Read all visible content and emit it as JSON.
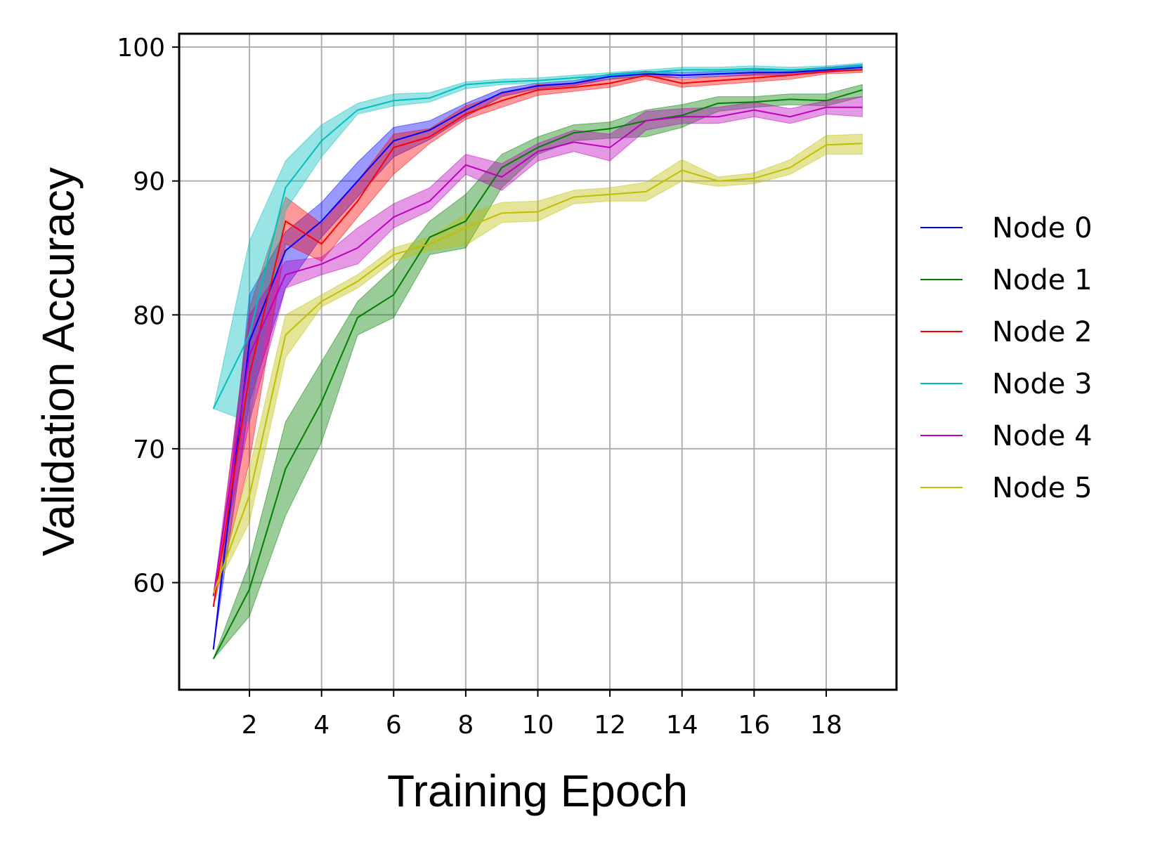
{
  "chart_data": {
    "type": "line",
    "title": "",
    "xlabel": "Training Epoch",
    "ylabel": "Validation Accuracy",
    "xlim": [
      0.05,
      19.95
    ],
    "ylim": [
      52,
      101
    ],
    "xticks": [
      2,
      4,
      6,
      8,
      10,
      12,
      14,
      16,
      18
    ],
    "yticks": [
      60,
      70,
      80,
      90,
      100
    ],
    "grid": true,
    "legend_position": "right",
    "x": [
      1,
      2,
      3,
      4,
      5,
      6,
      7,
      8,
      9,
      10,
      11,
      12,
      13,
      14,
      15,
      16,
      17,
      18,
      19
    ],
    "series": [
      {
        "name": "Node 0",
        "color": "#0000ff",
        "values": [
          55.0,
          78.0,
          84.8,
          87.0,
          90.0,
          93.0,
          93.8,
          95.3,
          96.6,
          97.1,
          97.3,
          97.8,
          98.0,
          97.9,
          98.0,
          98.1,
          98.1,
          98.3,
          98.5
        ],
        "lower": [
          55.0,
          73.5,
          82.0,
          85.8,
          88.8,
          91.8,
          93.1,
          94.8,
          96.3,
          96.9,
          97.1,
          97.6,
          97.8,
          97.7,
          97.8,
          97.9,
          97.9,
          98.1,
          98.3
        ],
        "upper": [
          55.0,
          81.5,
          86.2,
          88.4,
          91.4,
          94.0,
          94.5,
          95.8,
          96.9,
          97.3,
          97.5,
          98.0,
          98.2,
          98.1,
          98.2,
          98.3,
          98.3,
          98.5,
          98.7
        ]
      },
      {
        "name": "Node 1",
        "color": "#008000",
        "values": [
          54.3,
          59.5,
          68.5,
          73.5,
          79.8,
          81.5,
          85.8,
          87.0,
          91.0,
          92.5,
          93.6,
          93.9,
          94.5,
          94.9,
          95.8,
          95.9,
          96.1,
          96.0,
          96.8
        ],
        "lower": [
          54.3,
          57.5,
          65.0,
          70.5,
          78.5,
          79.8,
          84.5,
          85.0,
          89.5,
          92.0,
          93.0,
          93.2,
          93.3,
          94.0,
          95.2,
          95.5,
          95.7,
          95.6,
          96.3
        ],
        "upper": [
          54.3,
          61.5,
          72.0,
          76.5,
          81.0,
          83.5,
          87.0,
          89.0,
          92.0,
          93.3,
          94.2,
          94.4,
          95.3,
          95.7,
          96.3,
          96.3,
          96.5,
          96.5,
          97.2
        ]
      },
      {
        "name": "Node 2",
        "color": "#ff0000",
        "values": [
          58.2,
          75.5,
          87.0,
          85.3,
          88.5,
          92.5,
          93.3,
          95.0,
          96.0,
          96.8,
          97.0,
          97.3,
          97.9,
          97.3,
          97.5,
          97.7,
          97.9,
          98.2,
          98.3
        ],
        "lower": [
          58.2,
          69.0,
          85.3,
          84.0,
          87.3,
          90.5,
          92.8,
          94.6,
          95.5,
          96.4,
          96.7,
          97.0,
          97.6,
          97.0,
          97.2,
          97.4,
          97.6,
          98.0,
          98.1
        ],
        "upper": [
          58.2,
          80.5,
          88.8,
          86.8,
          90.0,
          93.5,
          93.9,
          95.6,
          96.5,
          97.2,
          97.3,
          97.6,
          98.2,
          97.6,
          97.8,
          98.0,
          98.2,
          98.4,
          98.5
        ]
      },
      {
        "name": "Node 3",
        "color": "#00bfbf",
        "values": [
          73.0,
          78.5,
          89.5,
          93.0,
          95.3,
          96.0,
          96.2,
          97.2,
          97.4,
          97.5,
          97.7,
          97.9,
          98.1,
          98.3,
          98.3,
          98.4,
          98.3,
          98.4,
          98.6
        ],
        "lower": [
          73.0,
          72.0,
          87.8,
          91.8,
          95.0,
          95.6,
          95.9,
          96.9,
          97.2,
          97.3,
          97.5,
          97.7,
          97.9,
          98.1,
          98.1,
          98.2,
          98.1,
          98.2,
          98.4
        ],
        "upper": [
          73.0,
          85.5,
          91.5,
          94.2,
          95.8,
          96.5,
          96.6,
          97.4,
          97.6,
          97.7,
          97.9,
          98.1,
          98.3,
          98.5,
          98.5,
          98.6,
          98.5,
          98.6,
          98.8
        ]
      },
      {
        "name": "Node 4",
        "color": "#bf00bf",
        "values": [
          59.0,
          77.0,
          83.0,
          83.8,
          85.0,
          87.3,
          88.5,
          91.2,
          90.3,
          92.2,
          92.9,
          92.5,
          94.5,
          94.8,
          94.8,
          95.3,
          94.8,
          95.5,
          95.5
        ],
        "lower": [
          59.0,
          72.0,
          82.0,
          83.0,
          83.8,
          86.5,
          87.8,
          90.5,
          89.3,
          91.5,
          92.2,
          91.5,
          93.8,
          94.3,
          94.3,
          94.8,
          94.3,
          95.0,
          94.8
        ],
        "upper": [
          59.0,
          80.0,
          84.0,
          84.3,
          86.5,
          88.3,
          89.5,
          92.0,
          91.3,
          92.8,
          93.8,
          93.5,
          95.2,
          95.4,
          95.5,
          95.9,
          95.4,
          96.0,
          96.3
        ]
      },
      {
        "name": "Node 5",
        "color": "#bfbf00",
        "values": [
          59.2,
          66.5,
          78.5,
          81.0,
          82.5,
          84.5,
          85.3,
          86.5,
          87.6,
          87.7,
          88.8,
          89.0,
          89.2,
          90.8,
          90.0,
          90.2,
          91.0,
          92.7,
          92.8
        ],
        "lower": [
          59.2,
          64.5,
          76.8,
          80.6,
          82.0,
          84.0,
          84.8,
          85.2,
          86.9,
          87.0,
          88.3,
          88.5,
          88.5,
          90.0,
          89.6,
          89.8,
          90.5,
          92.0,
          92.0
        ],
        "upper": [
          59.2,
          68.5,
          80.0,
          81.5,
          83.0,
          85.0,
          85.8,
          87.5,
          88.4,
          88.5,
          89.3,
          89.5,
          89.9,
          91.6,
          90.3,
          90.6,
          91.6,
          93.4,
          93.5
        ]
      }
    ]
  }
}
